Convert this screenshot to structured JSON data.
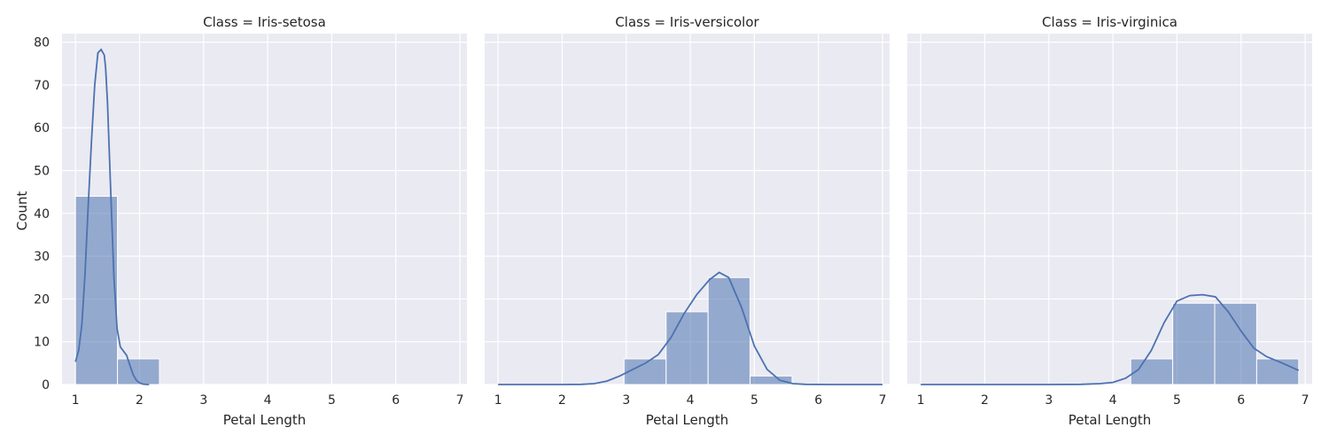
{
  "chart_data": {
    "type": "bar",
    "ylabel": "Count",
    "ylim": [
      0,
      82
    ],
    "yticks": [
      0,
      10,
      20,
      30,
      40,
      50,
      60,
      70,
      80
    ],
    "xlim": [
      0.79,
      7.11
    ],
    "xticks": [
      1,
      2,
      3,
      4,
      5,
      6,
      7
    ],
    "grid": true,
    "bin_edges": [
      1.0,
      1.6556,
      2.3111,
      2.9667,
      3.6222,
      4.2778,
      4.9333,
      5.5889,
      6.2444,
      6.9
    ],
    "panels": [
      {
        "title": "Class = Iris-setosa",
        "xlabel": "Petal Length",
        "counts": [
          44,
          6,
          0,
          0,
          0,
          0,
          0,
          0,
          0
        ],
        "kde": {
          "x": [
            1.0,
            1.05,
            1.1,
            1.15,
            1.2,
            1.25,
            1.3,
            1.35,
            1.4,
            1.45,
            1.47,
            1.5,
            1.55,
            1.6,
            1.65,
            1.7,
            1.75,
            1.8,
            1.85,
            1.9,
            1.95,
            2.0,
            2.05,
            2.1,
            2.15
          ],
          "y": [
            5.3,
            8,
            14,
            26,
            42,
            57,
            70,
            77.5,
            78.3,
            77,
            74,
            66,
            45,
            25,
            13,
            8.8,
            7.8,
            6.8,
            4.5,
            2.3,
            1.0,
            0.4,
            0.1,
            0.02,
            0
          ]
        }
      },
      {
        "title": "Class = Iris-versicolor",
        "xlabel": "Petal Length",
        "counts": [
          0,
          0,
          0,
          6,
          17,
          25,
          2,
          0,
          0
        ],
        "kde": {
          "x": [
            1.0,
            1.5,
            2.0,
            2.3,
            2.5,
            2.7,
            2.9,
            3.1,
            3.3,
            3.5,
            3.7,
            3.9,
            4.1,
            4.3,
            4.45,
            4.6,
            4.8,
            5.0,
            5.2,
            5.4,
            5.6,
            5.8,
            6.2,
            6.6,
            7.0
          ],
          "y": [
            0,
            0,
            0,
            0.05,
            0.2,
            0.8,
            2,
            3.5,
            5,
            7,
            11,
            16.5,
            21,
            24.5,
            26.2,
            25,
            18,
            9,
            3.5,
            1,
            0.2,
            0.05,
            0,
            0,
            0
          ]
        }
      },
      {
        "title": "Class = Iris-virginica",
        "xlabel": "Petal Length",
        "counts": [
          0,
          0,
          0,
          0,
          0,
          6,
          19,
          19,
          6
        ],
        "kde": {
          "x": [
            1.0,
            2.0,
            3.0,
            3.5,
            3.8,
            4.0,
            4.2,
            4.4,
            4.6,
            4.8,
            5.0,
            5.2,
            5.4,
            5.6,
            5.8,
            6.0,
            6.2,
            6.4,
            6.6,
            6.9
          ],
          "y": [
            0,
            0,
            0,
            0.05,
            0.2,
            0.5,
            1.5,
            3.5,
            8,
            14.5,
            19.5,
            20.8,
            21,
            20.5,
            17,
            12.5,
            8.5,
            6.5,
            5.3,
            3.3
          ]
        }
      }
    ]
  }
}
